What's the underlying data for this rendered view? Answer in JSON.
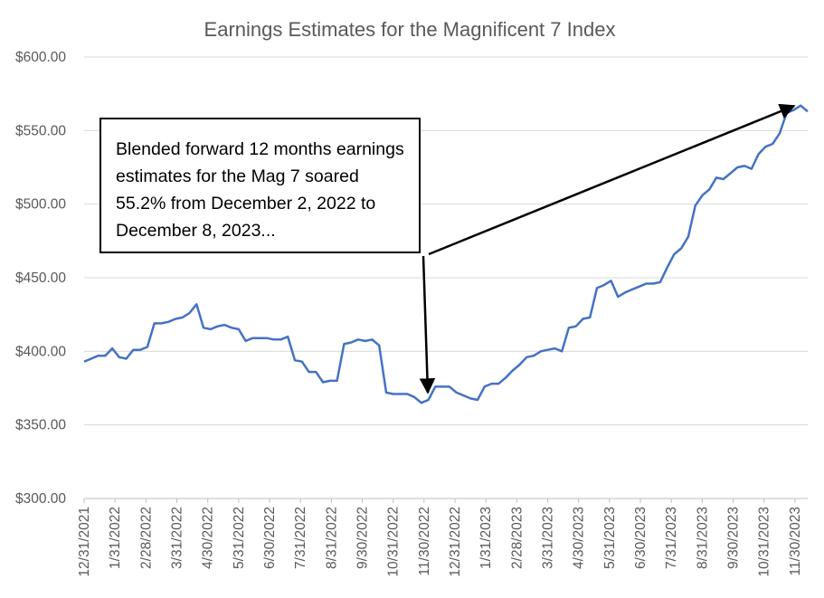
{
  "chart_data": {
    "type": "line",
    "title": "Earnings Estimates for the Magnificent 7 Index",
    "xlabel": "",
    "ylabel": "",
    "ylim": [
      300,
      600
    ],
    "y_tick_labels": [
      "$300.00",
      "$350.00",
      "$400.00",
      "$450.00",
      "$500.00",
      "$550.00",
      "$600.00"
    ],
    "y_tick_values": [
      300,
      350,
      400,
      450,
      500,
      550,
      600
    ],
    "x_tick_labels": [
      "12/31/2021",
      "1/31/2022",
      "2/28/2022",
      "3/31/2022",
      "4/30/2022",
      "5/31/2022",
      "6/30/2022",
      "7/31/2022",
      "8/31/2022",
      "9/30/2022",
      "10/31/2022",
      "11/30/2022",
      "12/31/2022",
      "1/31/2023",
      "2/28/2023",
      "3/31/2023",
      "4/30/2023",
      "5/31/2023",
      "6/30/2023",
      "7/31/2023",
      "8/31/2023",
      "9/30/2023",
      "10/31/2023",
      "11/30/2023"
    ],
    "grid": true,
    "series": [
      {
        "color": "#4472c4",
        "values": [
          393,
          395,
          397,
          397,
          402,
          396,
          395,
          401,
          401,
          403,
          419,
          419,
          420,
          422,
          423,
          426,
          432,
          416,
          415,
          417,
          418,
          416,
          415,
          407,
          409,
          409,
          409,
          408,
          408,
          410,
          394,
          393,
          386,
          386,
          379,
          380,
          380,
          405,
          406,
          408,
          407,
          408,
          404,
          372,
          371,
          371,
          371,
          369,
          365,
          367,
          376,
          376,
          376,
          372,
          370,
          368,
          367,
          376,
          378,
          378,
          382,
          387,
          391,
          396,
          397,
          400,
          401,
          402,
          400,
          416,
          417,
          422,
          423,
          443,
          445,
          448,
          437,
          440,
          442,
          444,
          446,
          446,
          447,
          457,
          466,
          470,
          478,
          499,
          506,
          510,
          518,
          517,
          521,
          525,
          526,
          524,
          534,
          539,
          541,
          548,
          562,
          564,
          567,
          563
        ]
      }
    ],
    "annotation": {
      "text": "Blended forward 12 months earnings estimates for the Mag 7 soared 55.2% from December 2, 2022 to December 8, 2023..."
    }
  }
}
